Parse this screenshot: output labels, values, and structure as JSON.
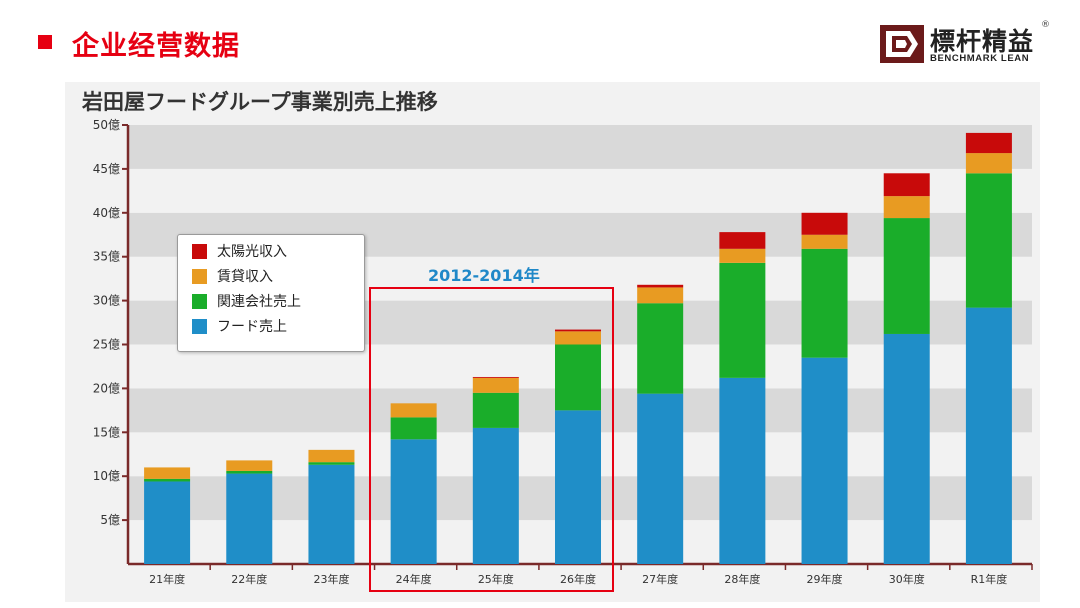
{
  "header": {
    "title": "企业经营数据"
  },
  "logo": {
    "name_cn": "標杆精益",
    "name_en": "BENCHMARK LEAN",
    "reg_mark": "®"
  },
  "chart_data": {
    "type": "bar",
    "stacked": true,
    "title": "岩田屋フードグループ事業別売上推移",
    "categories": [
      "21年度",
      "22年度",
      "23年度",
      "24年度",
      "25年度",
      "26年度",
      "27年度",
      "28年度",
      "29年度",
      "30年度",
      "R1年度"
    ],
    "ylim": [
      0,
      50
    ],
    "yticks": [
      5,
      10,
      15,
      20,
      25,
      30,
      35,
      40,
      45,
      50
    ],
    "ytick_labels": [
      "5億",
      "10億",
      "15億",
      "20億",
      "25億",
      "30億",
      "35億",
      "40億",
      "45億",
      "50億"
    ],
    "grid": "alternating horizontal bands",
    "legend_position": "upper-left",
    "series": [
      {
        "name": "フード売上",
        "color": "#1f8ec8",
        "values": [
          9.4,
          10.3,
          11.3,
          14.2,
          15.5,
          17.5,
          19.4,
          21.2,
          23.5,
          26.2,
          29.2
        ]
      },
      {
        "name": "関連会社売上",
        "color": "#1aad2a",
        "values": [
          0.3,
          0.3,
          0.3,
          2.5,
          4.0,
          7.5,
          10.3,
          13.1,
          12.4,
          13.2,
          15.3
        ]
      },
      {
        "name": "賃貸収入",
        "color": "#e89b22",
        "values": [
          1.3,
          1.2,
          1.4,
          1.6,
          1.7,
          1.5,
          1.8,
          1.6,
          1.6,
          2.5,
          2.3
        ]
      },
      {
        "name": "太陽光収入",
        "color": "#c80a0a",
        "values": [
          0.0,
          0.0,
          0.0,
          0.0,
          0.1,
          0.2,
          0.3,
          1.9,
          2.5,
          2.6,
          2.3
        ]
      }
    ],
    "legend_order": [
      "太陽光収入",
      "賃貸収入",
      "関連会社売上",
      "フード売上"
    ],
    "annotation": {
      "label": "2012-2014年",
      "covers": [
        "24年度",
        "25年度",
        "26年度"
      ],
      "color": "#e60012",
      "label_color": "#1f88c8"
    }
  }
}
